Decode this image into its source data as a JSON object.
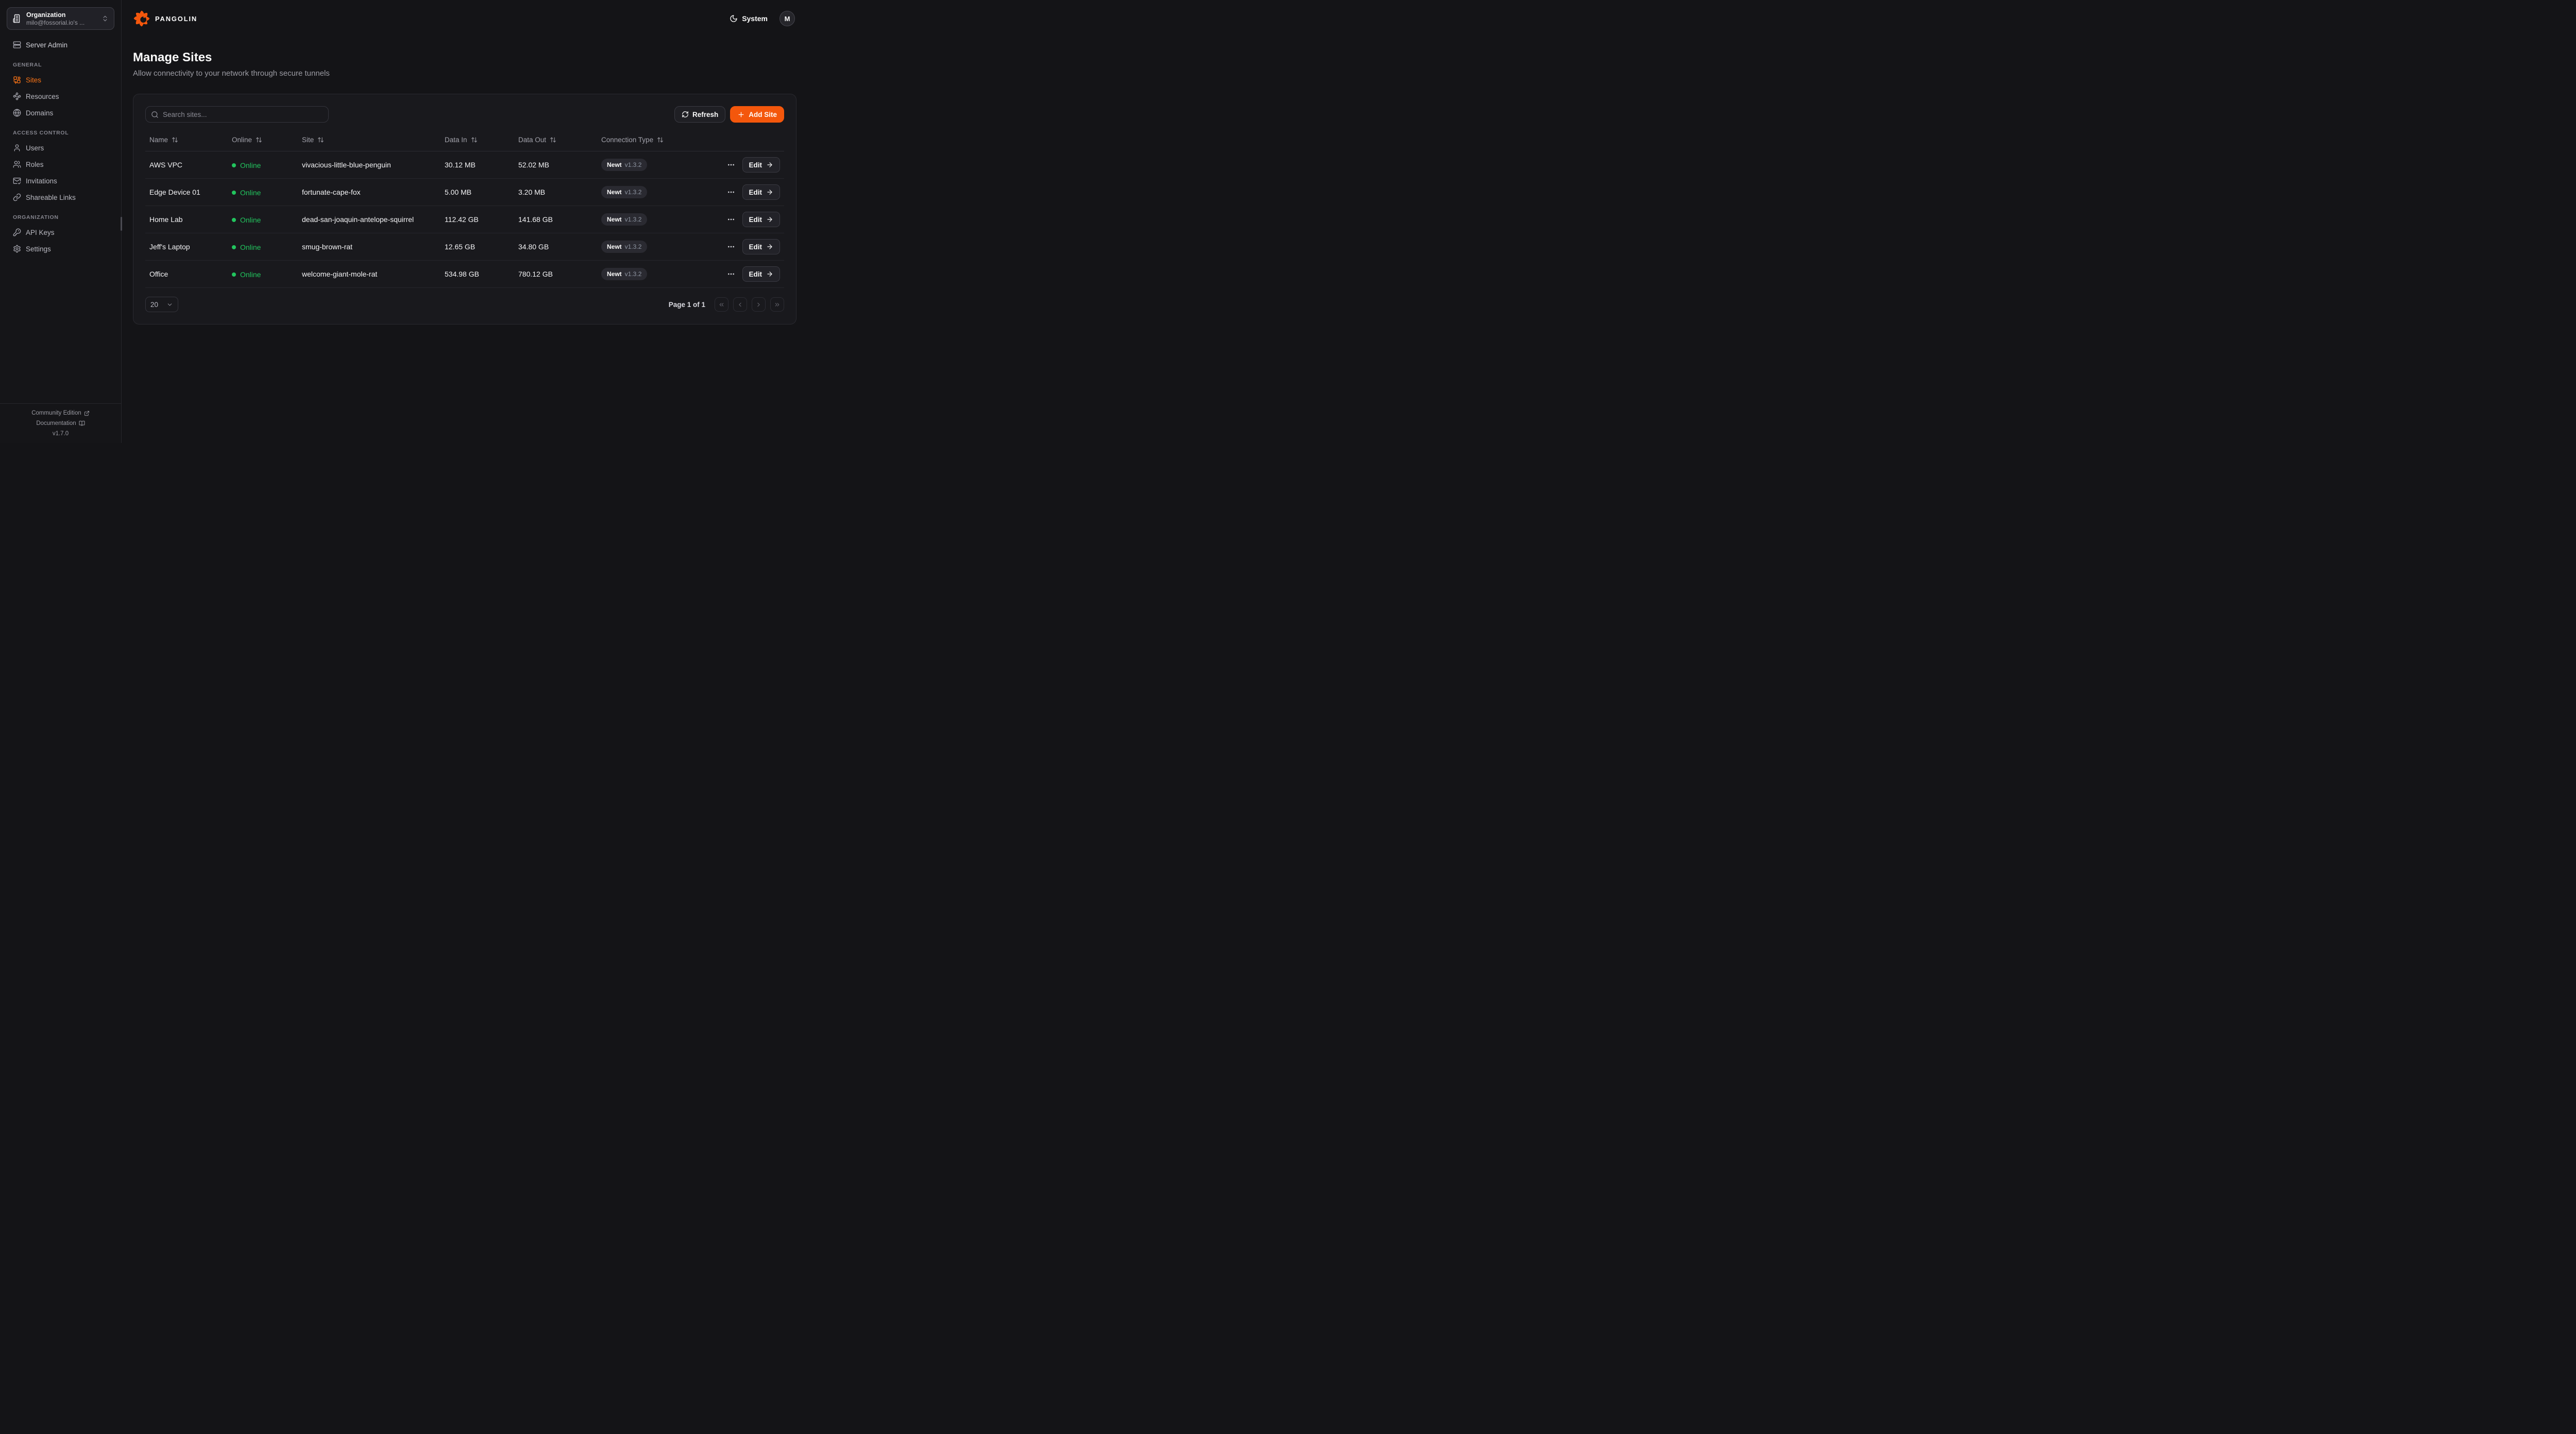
{
  "theme": {
    "accent_orange": "#f4570c",
    "sidebar_active_orange": "#f97316",
    "online_green": "#22c55e"
  },
  "header": {
    "brand": "PANGOLIN",
    "theme_toggle_label": "System",
    "avatar_initial": "M"
  },
  "sidebar": {
    "org_selector": {
      "label": "Organization",
      "value": "milo@fossorial.io's ..."
    },
    "server_admin_label": "Server Admin",
    "sections": [
      {
        "label": "GENERAL",
        "items": [
          {
            "label": "Sites"
          },
          {
            "label": "Resources"
          },
          {
            "label": "Domains"
          }
        ]
      },
      {
        "label": "ACCESS CONTROL",
        "items": [
          {
            "label": "Users"
          },
          {
            "label": "Roles"
          },
          {
            "label": "Invitations"
          },
          {
            "label": "Shareable Links"
          }
        ]
      },
      {
        "label": "ORGANIZATION",
        "items": [
          {
            "label": "API Keys"
          },
          {
            "label": "Settings"
          }
        ]
      }
    ],
    "footer": {
      "community": "Community Edition",
      "documentation": "Documentation",
      "version": "v1.7.0"
    }
  },
  "page": {
    "title": "Manage Sites",
    "subtitle": "Allow connectivity to your network through secure tunnels"
  },
  "toolbar": {
    "search_placeholder": "Search sites...",
    "refresh_label": "Refresh",
    "add_site_label": "Add Site"
  },
  "table": {
    "columns": [
      "Name",
      "Online",
      "Site",
      "Data In",
      "Data Out",
      "Connection Type"
    ],
    "edit_label": "Edit",
    "rows": [
      {
        "name": "AWS VPC",
        "status": "Online",
        "site": "vivacious-little-blue-penguin",
        "data_in": "30.12 MB",
        "data_out": "52.02 MB",
        "connection": {
          "type": "Newt",
          "version": "v1.3.2"
        }
      },
      {
        "name": "Edge Device 01",
        "status": "Online",
        "site": "fortunate-cape-fox",
        "data_in": "5.00 MB",
        "data_out": "3.20 MB",
        "connection": {
          "type": "Newt",
          "version": "v1.3.2"
        }
      },
      {
        "name": "Home Lab",
        "status": "Online",
        "site": "dead-san-joaquin-antelope-squirrel",
        "data_in": "112.42 GB",
        "data_out": "141.68 GB",
        "connection": {
          "type": "Newt",
          "version": "v1.3.2"
        }
      },
      {
        "name": "Jeff's Laptop",
        "status": "Online",
        "site": "smug-brown-rat",
        "data_in": "12.65 GB",
        "data_out": "34.80 GB",
        "connection": {
          "type": "Newt",
          "version": "v1.3.2"
        }
      },
      {
        "name": "Office",
        "status": "Online",
        "site": "welcome-giant-mole-rat",
        "data_in": "534.98 GB",
        "data_out": "780.12 GB",
        "connection": {
          "type": "Newt",
          "version": "v1.3.2"
        }
      }
    ]
  },
  "pagination": {
    "page_size": "20",
    "status": "Page 1 of 1"
  }
}
